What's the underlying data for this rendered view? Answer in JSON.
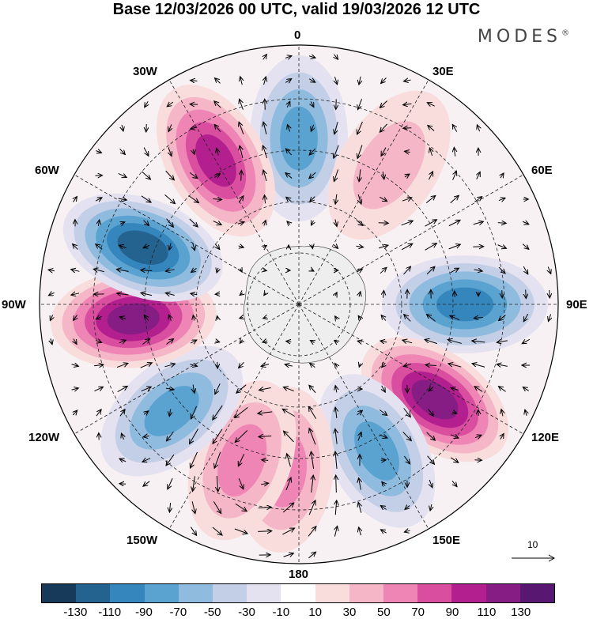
{
  "title": "Base 12/03/2026 00 UTC, valid 19/03/2026 12 UTC",
  "brand": "MODES",
  "brand_mark": "®",
  "longitude_labels": {
    "lon_0": "0",
    "lon_30e": "30E",
    "lon_60e": "60E",
    "lon_90e": "90E",
    "lon_120e": "120E",
    "lon_150e": "150E",
    "lon_180": "180",
    "lon_150w": "150W",
    "lon_120w": "120W",
    "lon_90w": "90W",
    "lon_60w": "60W",
    "lon_30w": "30W"
  },
  "vector_reference": "10",
  "colorbar": {
    "colors": [
      "#173a5a",
      "#24628f",
      "#3586bd",
      "#5aa2cf",
      "#8fbbdf",
      "#c3cfe7",
      "#e4e2f1",
      "#ffffff",
      "#f9dddd",
      "#f5b6c7",
      "#ee85b5",
      "#da4ea0",
      "#b31f8e",
      "#861d84",
      "#581770"
    ],
    "ticks": [
      "-130",
      "-110",
      "-90",
      "-70",
      "-50",
      "-30",
      "-10",
      "10",
      "30",
      "50",
      "70",
      "90",
      "110",
      "130"
    ]
  },
  "anomaly_centers": [
    {
      "name": "center-0",
      "lon": 0,
      "value": -95
    },
    {
      "name": "center-33e",
      "lon": 33,
      "value": 55
    },
    {
      "name": "center-90e",
      "lon": 90,
      "value": -100
    },
    {
      "name": "center-125e",
      "lon": 125,
      "value": 130
    },
    {
      "name": "center-150e",
      "lon": 152,
      "value": -95
    },
    {
      "name": "center-175w",
      "lon": -175,
      "value": 60
    },
    {
      "name": "center-160w",
      "lon": -160,
      "value": 70
    },
    {
      "name": "center-130w",
      "lon": -130,
      "value": -90
    },
    {
      "name": "center-95w",
      "lon": -95,
      "value": 130
    },
    {
      "name": "center-70w",
      "lon": -70,
      "value": -130
    },
    {
      "name": "center-30w",
      "lon": -30,
      "value": 115
    }
  ]
}
